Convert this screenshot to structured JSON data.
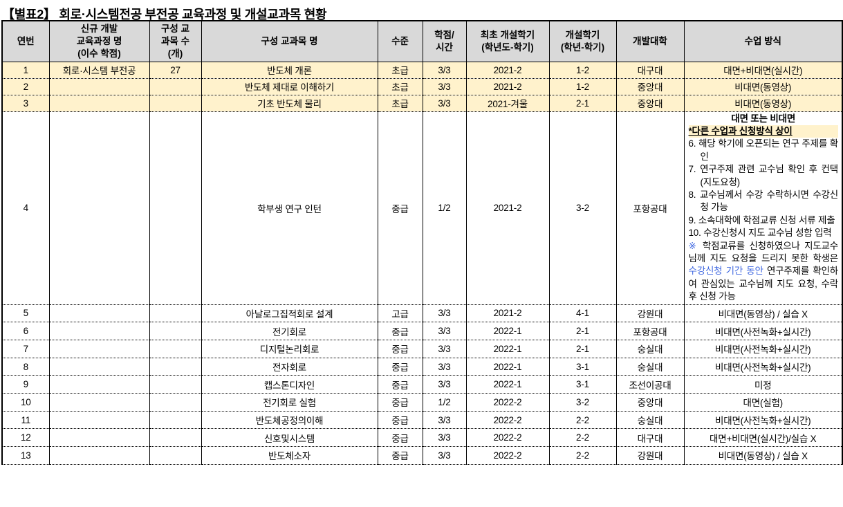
{
  "title": "【별표2】 회로·시스템전공 부전공 교육과정 및 개설교과목 현황",
  "colors": {
    "header_background": "#D9D9D9",
    "band_yellow": "#FFF2CC",
    "note_highlight_yellow": "#FFF2CC",
    "accent_blue": "#4169E1"
  },
  "table": {
    "headers": [
      "연번",
      "신규 개발\n교육과정 명\n(이수 학점)",
      "구성 교\n과목 수\n(개)",
      "구성 교과목 명",
      "수준",
      "학점/\n시간",
      "최초 개설학기\n(학년도-학기)",
      "개설학기\n(학년-학기)",
      "개발대학",
      "수업 방식"
    ],
    "rows": [
      {
        "no": "1",
        "program": "회로·시스템 부전공",
        "count": "27",
        "course": "반도체 개론",
        "level": "초급",
        "credit": "3/3",
        "first_term": "2021-2",
        "term": "1-2",
        "univ": "대구대",
        "method": "대면+비대면(실시간)",
        "band": "yellow",
        "size": "sm"
      },
      {
        "no": "2",
        "program": "",
        "count": "",
        "course": "반도체 제대로 이해하기",
        "level": "초급",
        "credit": "3/3",
        "first_term": "2021-2",
        "term": "1-2",
        "univ": "중앙대",
        "method": "비대면(동영상)",
        "band": "yellow",
        "size": "sm"
      },
      {
        "no": "3",
        "program": "",
        "count": "",
        "course": "기초 반도체 물리",
        "level": "초급",
        "credit": "3/3",
        "first_term": "2021-겨울",
        "term": "2-1",
        "univ": "중앙대",
        "method": "비대면(동영상)",
        "band": "yellow",
        "size": "sm"
      },
      {
        "no": "4",
        "program": "",
        "count": "",
        "course": "학부생 연구 인턴",
        "level": "중급",
        "credit": "1/2",
        "first_term": "2021-2",
        "term": "3-2",
        "univ": "포항공대",
        "method_rich": true,
        "size": "tall"
      },
      {
        "no": "5",
        "program": "",
        "count": "",
        "course": "아날로그집적회로 설계",
        "level": "고급",
        "credit": "3/3",
        "first_term": "2021-2",
        "term": "4-1",
        "univ": "강원대",
        "method": "비대면(동영상) / 실습 X",
        "size": "md"
      },
      {
        "no": "6",
        "program": "",
        "count": "",
        "course": "전기회로",
        "level": "중급",
        "credit": "3/3",
        "first_term": "2022-1",
        "term": "2-1",
        "univ": "포항공대",
        "method": "비대면(사전녹화+실시간)",
        "size": "md"
      },
      {
        "no": "7",
        "program": "",
        "count": "",
        "course": "디지털논리회로",
        "level": "중급",
        "credit": "3/3",
        "first_term": "2022-1",
        "term": "2-1",
        "univ": "숭실대",
        "method": "비대면(사전녹화+실시간)",
        "size": "md"
      },
      {
        "no": "8",
        "program": "",
        "count": "",
        "course": "전자회로",
        "level": "중급",
        "credit": "3/3",
        "first_term": "2022-1",
        "term": "3-1",
        "univ": "숭실대",
        "method": "비대면(사전녹화+실시간)",
        "size": "md"
      },
      {
        "no": "9",
        "program": "",
        "count": "",
        "course": "캡스톤디자인",
        "level": "중급",
        "credit": "3/3",
        "first_term": "2022-1",
        "term": "3-1",
        "univ": "조선이공대",
        "method": "미정",
        "size": "md"
      },
      {
        "no": "10",
        "program": "",
        "count": "",
        "course": "전기회로 실험",
        "level": "중급",
        "credit": "1/2",
        "first_term": "2022-2",
        "term": "3-2",
        "univ": "중앙대",
        "method": "대면(실험)",
        "size": "md"
      },
      {
        "no": "11",
        "program": "",
        "count": "",
        "course": "반도체공정의이해",
        "level": "중급",
        "credit": "3/3",
        "first_term": "2022-2",
        "term": "2-2",
        "univ": "숭실대",
        "method": "비대면(사전녹화+실시간)",
        "size": "md"
      },
      {
        "no": "12",
        "program": "",
        "count": "",
        "course": "신호및시스템",
        "level": "중급",
        "credit": "3/3",
        "first_term": "2022-2",
        "term": "2-2",
        "univ": "대구대",
        "method": "대면+비대면(실시간)/실습 X",
        "size": "md"
      },
      {
        "no": "13",
        "program": "",
        "count": "",
        "course": "반도체소자",
        "level": "중급",
        "credit": "3/3",
        "first_term": "2022-2",
        "term": "2-2",
        "univ": "강원대",
        "method": "비대면(동영상) / 실습 X",
        "size": "md"
      }
    ]
  },
  "special_method": {
    "mode_line": "대면 또는 비대면",
    "highlight_line": "*다른 수업과 신청방식 상이",
    "steps": [
      {
        "num": "6.",
        "text": "해당 학기에 오픈되는 연구 주제를 확인"
      },
      {
        "num": "7.",
        "text": "연구주제 관련 교수님 확인 후 컨택(지도요청)"
      },
      {
        "num": "8.",
        "text": "교수님께서 수강 수락하시면 수강신청 가능"
      },
      {
        "num": "9.",
        "text": "소속대학에 학점교류 신청 서류 제출"
      },
      {
        "num": "10.",
        "text": "수강신청시 지도 교수님 성함 입력"
      }
    ],
    "note_mark": "※",
    "note_text_1": " 학점교류를 신청하였으나 지도교수님께 지도 요청을 드리지 못한 학생은 ",
    "note_blue": "수강신청 기간 동안",
    "note_text_2": " 연구주제를 확인하여 관심있는 교수님께 지도 요청, 수락 후 신청 가능"
  }
}
